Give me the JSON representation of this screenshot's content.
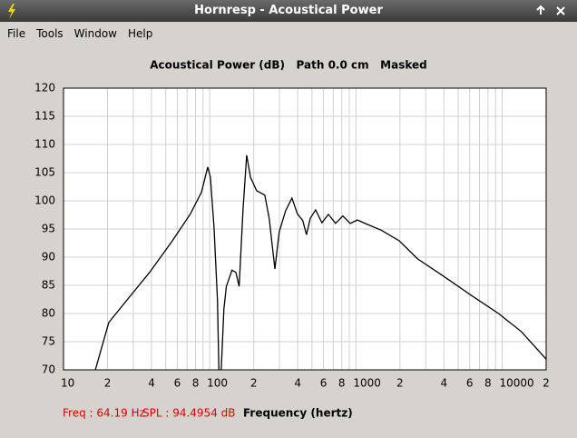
{
  "window": {
    "title": "Hornresp - Acoustical Power"
  },
  "menu": [
    "File",
    "Tools",
    "Window",
    "Help"
  ],
  "status": {
    "freq": "Freq : 64.19 Hz",
    "spl": "SPL : 94.4954 dB"
  },
  "chart_data": {
    "type": "line",
    "title": "Acoustical Power (dB)   Path 0.0 cm   Masked",
    "x_label": "Frequency (hertz)",
    "x_scale": "log",
    "grid": true,
    "xlim": [
      10,
      20000
    ],
    "ylim": [
      70,
      120
    ],
    "yticks": [
      70,
      75,
      80,
      85,
      90,
      95,
      100,
      105,
      110,
      115,
      120
    ],
    "xticks": [
      10,
      {
        "value": 20,
        "label": "2"
      },
      {
        "value": 40,
        "label": "4"
      },
      {
        "value": 60,
        "label": "6"
      },
      {
        "value": 80,
        "label": "8"
      },
      100,
      {
        "value": 200,
        "label": "2"
      },
      {
        "value": 400,
        "label": "4"
      },
      {
        "value": 600,
        "label": "6"
      },
      {
        "value": 800,
        "label": "8"
      },
      1000,
      {
        "value": 2000,
        "label": "2"
      },
      {
        "value": 4000,
        "label": "4"
      },
      {
        "value": 6000,
        "label": "6"
      },
      {
        "value": 8000,
        "label": "8"
      },
      10000,
      {
        "value": 20000,
        "label": "2"
      }
    ],
    "x_minor_grid": [
      30,
      50,
      70,
      90,
      300,
      500,
      700,
      900,
      3000,
      5000,
      7000,
      9000
    ],
    "series": [
      {
        "color": "#000000",
        "x": [
          16.5,
          20.4,
          27.2,
          38.8,
          55.5,
          73.8,
          87.7,
          97,
          101,
          107,
          113,
          116,
          119,
          125,
          130,
          142,
          151,
          159,
          169,
          179,
          190,
          209,
          238,
          255,
          279,
          299,
          330,
          365,
          398,
          433,
          459,
          487,
          530,
          585,
          648,
          726,
          814,
          913,
          1023,
          1200,
          1486,
          1980,
          2640,
          4040,
          6170,
          9440,
          13500,
          20000
        ],
        "values": [
          70,
          78.4,
          82.4,
          87.3,
          92.9,
          97.7,
          101.5,
          106,
          104.2,
          95.3,
          82.4,
          68,
          68,
          80.8,
          84.8,
          87.7,
          87.3,
          84.8,
          98.5,
          108.1,
          104.2,
          101.8,
          101,
          96.9,
          87.9,
          94.5,
          98.2,
          100.5,
          97.7,
          96.5,
          94,
          96.9,
          98.4,
          96.1,
          97.6,
          96,
          97.3,
          96,
          96.6,
          95.8,
          94.8,
          92.9,
          89.7,
          86.5,
          83.2,
          80,
          76.8,
          71.9
        ]
      }
    ]
  }
}
